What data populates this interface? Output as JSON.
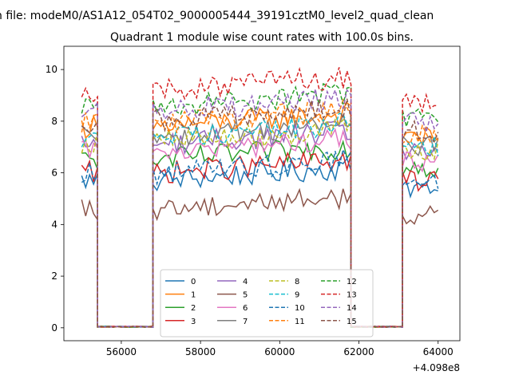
{
  "figure": {
    "suptitle": "n file: modeM0/AS1A12_054T02_9000005444_39191cztM0_level2_quad_clean",
    "title": "Quadrant 1 module wise count rates with 100.0s bins."
  },
  "chart_data": {
    "type": "line",
    "title": "Quadrant 1 module wise count rates with 100.0s bins.",
    "xlabel": "",
    "ylabel": "",
    "x_offset_label": "+4.098e8",
    "xlim": [
      54550,
      64550
    ],
    "ylim": [
      -0.5,
      10.9
    ],
    "xticks": [
      56000,
      58000,
      60000,
      62000,
      64000
    ],
    "xtick_labels": [
      "56000",
      "58000",
      "60000",
      "62000",
      "64000"
    ],
    "yticks": [
      0,
      2,
      4,
      6,
      8,
      10
    ],
    "ytick_labels": [
      "0",
      "2",
      "4",
      "6",
      "8",
      "10"
    ],
    "grid": false,
    "legend": {
      "placement": "lower center",
      "columns": 4
    },
    "segments": [
      {
        "x_start": 55000,
        "x_end": 55400,
        "kind": "on"
      },
      {
        "x_start": 55400,
        "x_end": 56800,
        "kind": "gap"
      },
      {
        "x_start": 56800,
        "x_end": 61800,
        "kind": "on"
      },
      {
        "x_start": 61800,
        "x_end": 63100,
        "kind": "gap"
      },
      {
        "x_start": 63100,
        "x_end": 64050,
        "kind": "on"
      }
    ],
    "series": [
      {
        "name": "0",
        "color": "#1f77b4",
        "dash": "solid",
        "level": 5.7
      },
      {
        "name": "1",
        "color": "#ff7f0e",
        "dash": "solid",
        "level": 7.8
      },
      {
        "name": "2",
        "color": "#2ca02c",
        "dash": "solid",
        "level": 6.5
      },
      {
        "name": "3",
        "color": "#d62728",
        "dash": "solid",
        "level": 6.0
      },
      {
        "name": "4",
        "color": "#9467bd",
        "dash": "solid",
        "level": 7.1
      },
      {
        "name": "5",
        "color": "#8c564b",
        "dash": "solid",
        "level": 4.6
      },
      {
        "name": "6",
        "color": "#e377c2",
        "dash": "solid",
        "level": 6.8
      },
      {
        "name": "7",
        "color": "#7f7f7f",
        "dash": "solid",
        "level": 7.4
      },
      {
        "name": "8",
        "color": "#bcbd22",
        "dash": "dashed",
        "level": 7.2
      },
      {
        "name": "9",
        "color": "#17becf",
        "dash": "dashed",
        "level": 7.4
      },
      {
        "name": "10",
        "color": "#1f77b4",
        "dash": "dashed",
        "level": 6.0
      },
      {
        "name": "11",
        "color": "#ff7f0e",
        "dash": "dashed",
        "level": 7.9
      },
      {
        "name": "12",
        "color": "#2ca02c",
        "dash": "dashed",
        "level": 8.6
      },
      {
        "name": "13",
        "color": "#d62728",
        "dash": "dashed",
        "level": 9.2
      },
      {
        "name": "14",
        "color": "#9467bd",
        "dash": "dashed",
        "level": 8.4
      },
      {
        "name": "15",
        "color": "#8c564b",
        "dash": "dashed",
        "level": 8.0
      }
    ]
  }
}
